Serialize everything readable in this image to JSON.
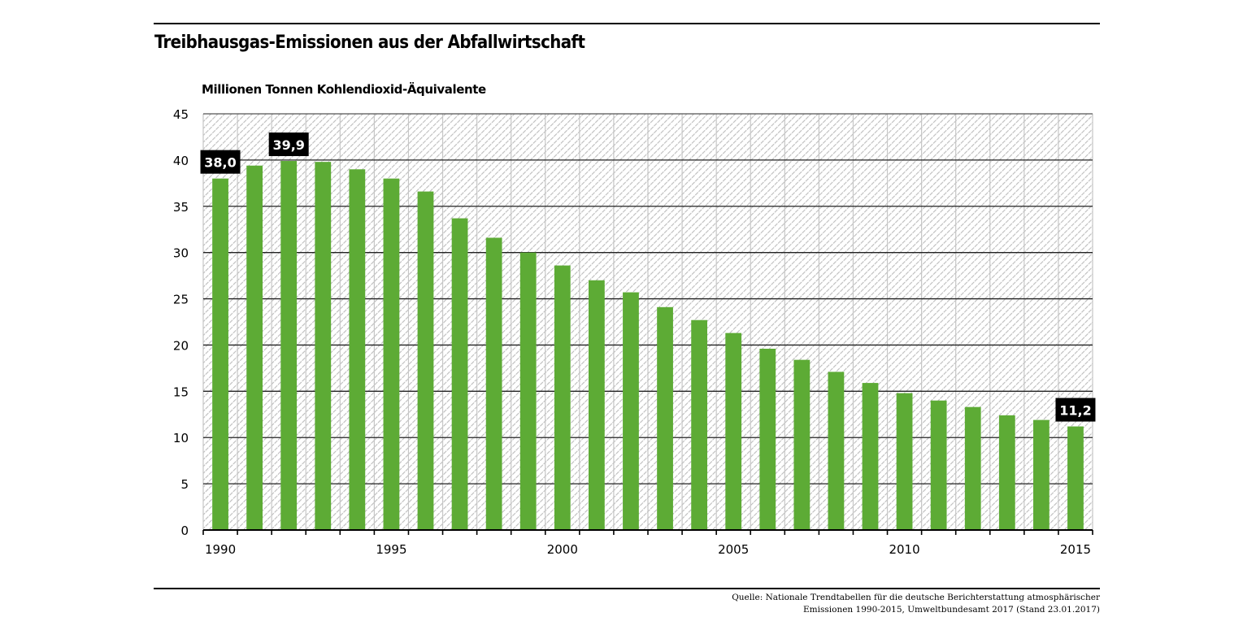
{
  "chart_data": {
    "type": "bar",
    "title": "Treibhausgas-Emissionen aus der Abfallwirtschaft",
    "ylabel": "Millionen Tonnen Kohlendioxid-Äquivalente",
    "xlabel": "",
    "categories": [
      "1990",
      "1991",
      "1992",
      "1993",
      "1994",
      "1995",
      "1996",
      "1997",
      "1998",
      "1999",
      "2000",
      "2001",
      "2002",
      "2003",
      "2004",
      "2005",
      "2006",
      "2007",
      "2008",
      "2009",
      "2010",
      "2011",
      "2012",
      "2013",
      "2014",
      "2015"
    ],
    "values": [
      38.0,
      39.4,
      39.9,
      39.8,
      39.0,
      38.0,
      36.6,
      33.7,
      31.6,
      30.0,
      28.6,
      27.0,
      25.7,
      24.1,
      22.7,
      21.3,
      19.6,
      18.4,
      17.1,
      15.9,
      14.8,
      14.0,
      13.3,
      12.4,
      11.9,
      11.2
    ],
    "ylim": [
      0,
      45
    ],
    "yticks": [
      0,
      5,
      10,
      15,
      20,
      25,
      30,
      35,
      40,
      45
    ],
    "ytick_labels": [
      "0",
      "5",
      "10",
      "15",
      "20",
      "25",
      "30",
      "35",
      "40",
      "45"
    ],
    "xtick_labels": [
      {
        "category": "1990",
        "label": "1990"
      },
      {
        "category": "1995",
        "label": "1995"
      },
      {
        "category": "2000",
        "label": "2000"
      },
      {
        "category": "2005",
        "label": "2005"
      },
      {
        "category": "2010",
        "label": "2010"
      },
      {
        "category": "2015",
        "label": "2015"
      }
    ],
    "data_labels": [
      {
        "category": "1990",
        "label": "38,0"
      },
      {
        "category": "1992",
        "label": "39,9"
      },
      {
        "category": "2015",
        "label": "11,2"
      }
    ],
    "grid": true,
    "legend": "none",
    "colors": {
      "bar": "#5dab35",
      "background_hatch": "#bdbdbd",
      "gridline": "#000000",
      "data_label_bg": "#000000",
      "data_label_text": "#ffffff"
    }
  },
  "source_text": {
    "line1": "Quelle: Nationale Trendtabellen für die deutsche Berichterstattung atmosphärischer",
    "line2": "Emissionen 1990-2015, Umweltbundesamt 2017 (Stand 23.01.2017)"
  }
}
